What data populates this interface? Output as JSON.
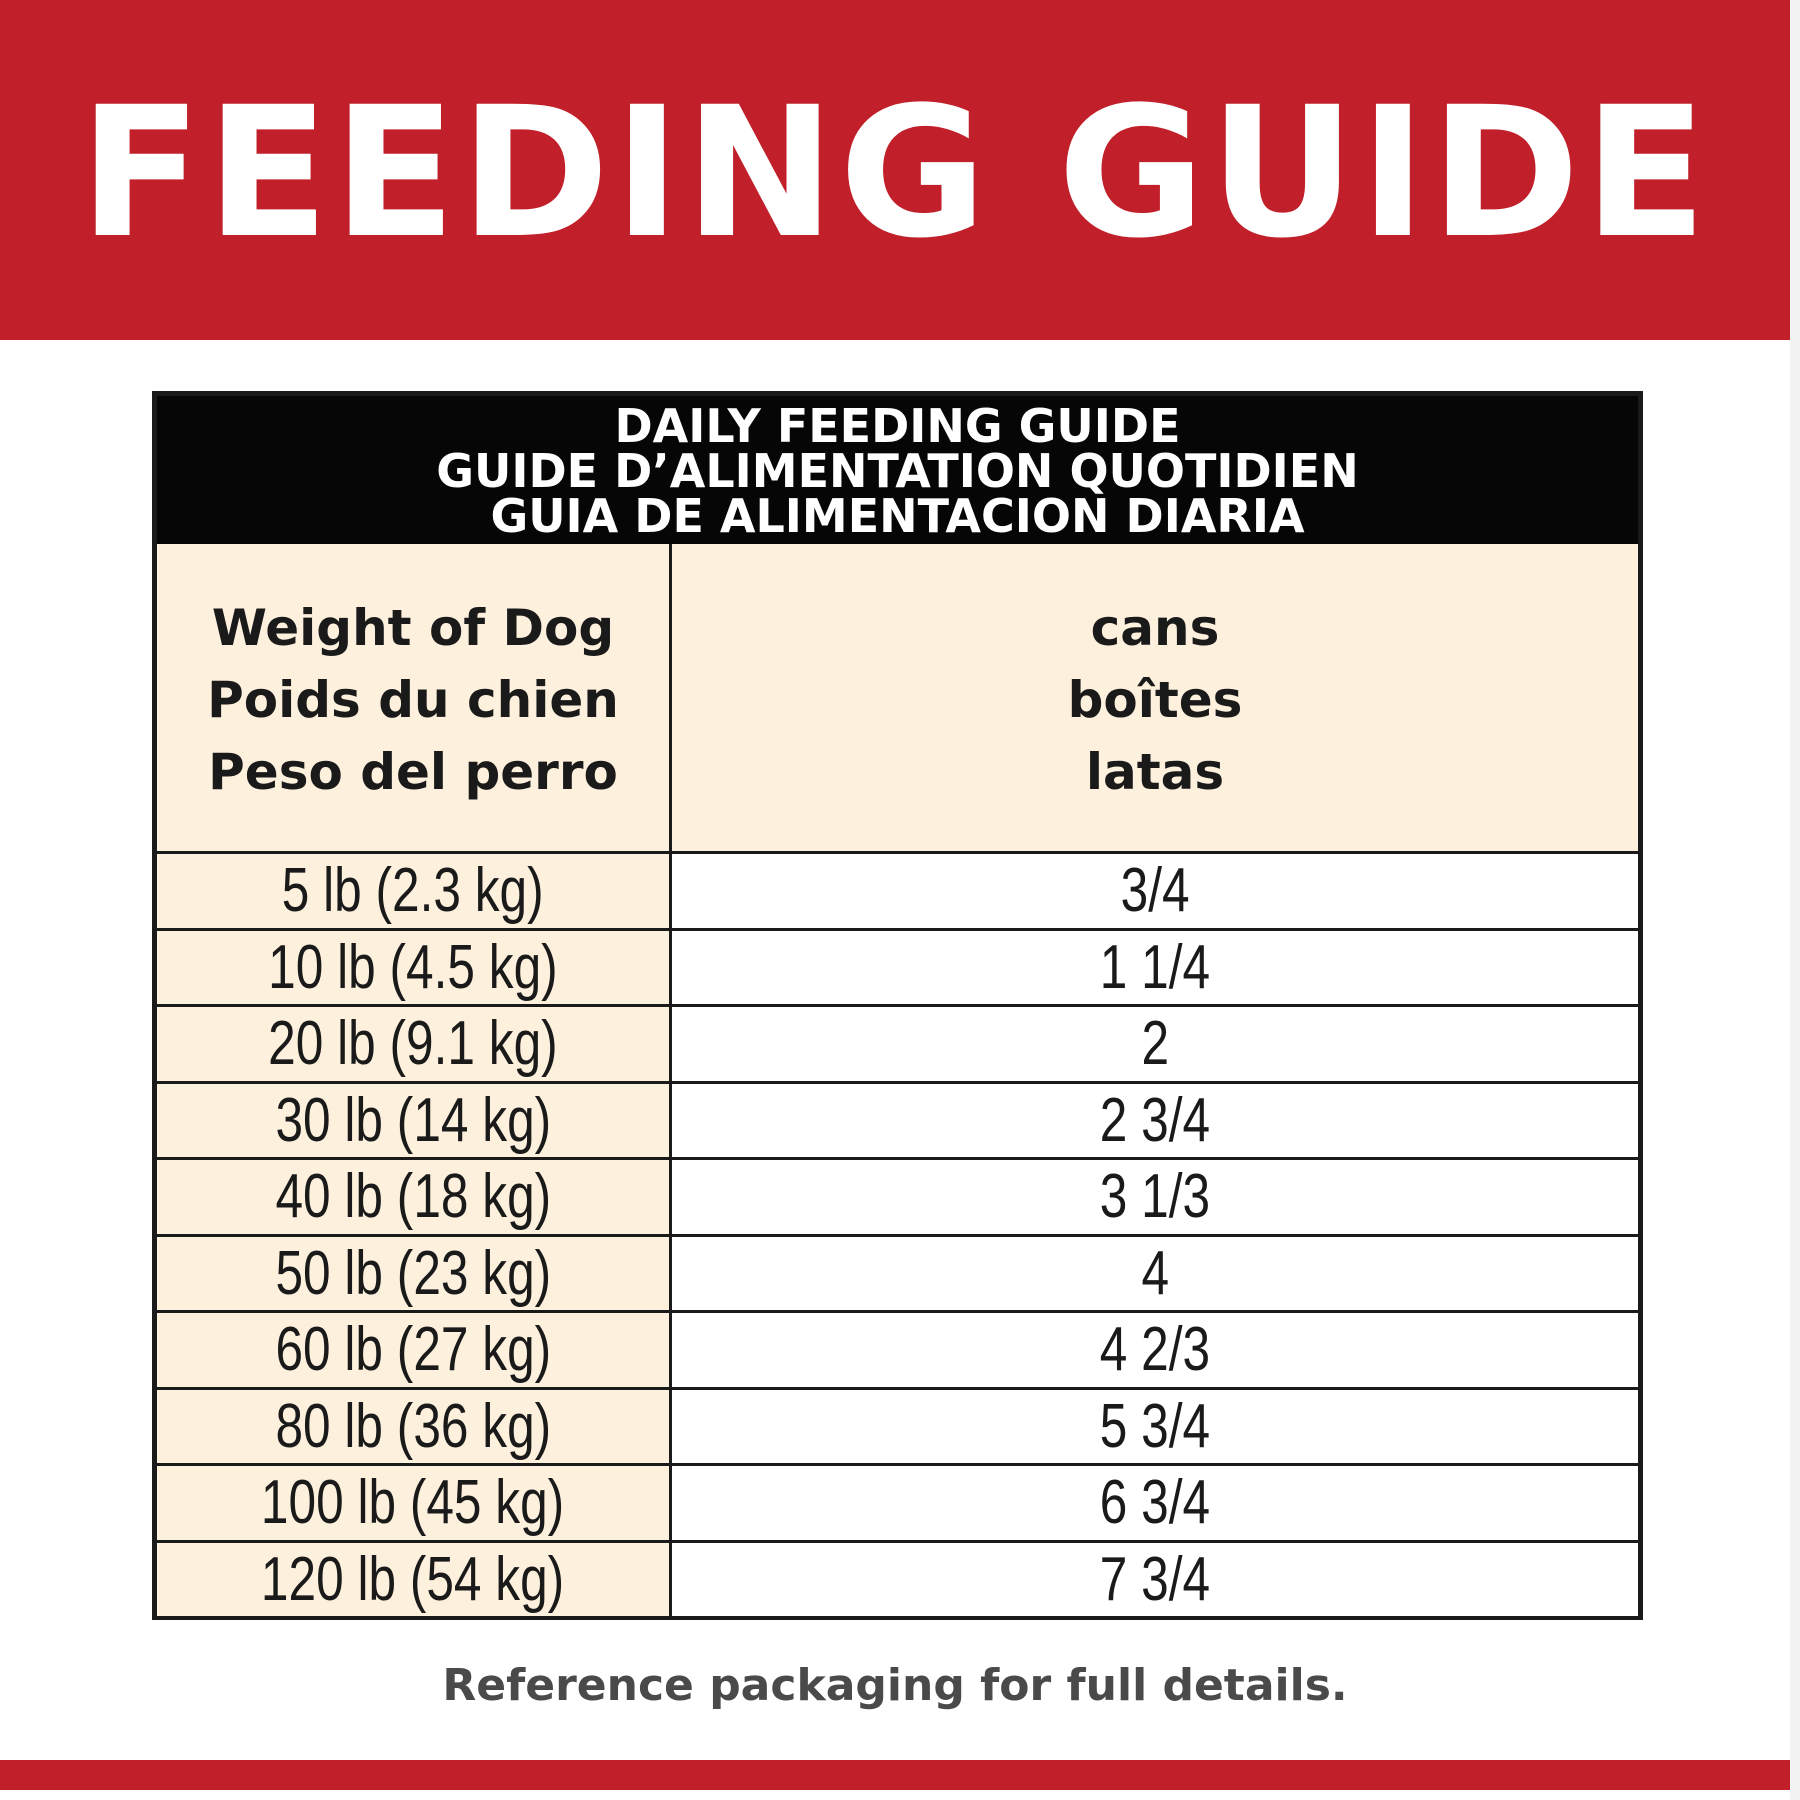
{
  "banner": {
    "title": "FEEDING GUIDE"
  },
  "table": {
    "title_lines": [
      "DAILY FEEDING GUIDE",
      "GUIDE D’ALIMENTATION QUOTIDIEN",
      "GUIA DE ALIMENTACION DIARIA"
    ],
    "col_weight_header": [
      "Weight of Dog",
      "Poids du chien",
      "Peso del perro"
    ],
    "col_cans_header": [
      "cans",
      "boîtes",
      "latas"
    ],
    "rows": [
      {
        "weight": "5 lb (2.3 kg)",
        "cans": "3/4"
      },
      {
        "weight": "10 lb (4.5 kg)",
        "cans": "1 1/4"
      },
      {
        "weight": "20 lb (9.1 kg)",
        "cans": "2"
      },
      {
        "weight": "30 lb (14 kg)",
        "cans": "2 3/4"
      },
      {
        "weight": "40 lb (18 kg)",
        "cans": "3 1/3"
      },
      {
        "weight": "50 lb (23 kg)",
        "cans": "4"
      },
      {
        "weight": "60 lb (27 kg)",
        "cans": "4 2/3"
      },
      {
        "weight": "80 lb (36 kg)",
        "cans": "5 3/4"
      },
      {
        "weight": "100 lb (45 kg)",
        "cans": "6 3/4"
      },
      {
        "weight": "120 lb (54 kg)",
        "cans": "7 3/4"
      }
    ]
  },
  "footnote": "Reference packaging for full details.",
  "colors": {
    "brand_red": "#c1202a",
    "header_black": "#060606",
    "cream": "#fdf0dd"
  }
}
